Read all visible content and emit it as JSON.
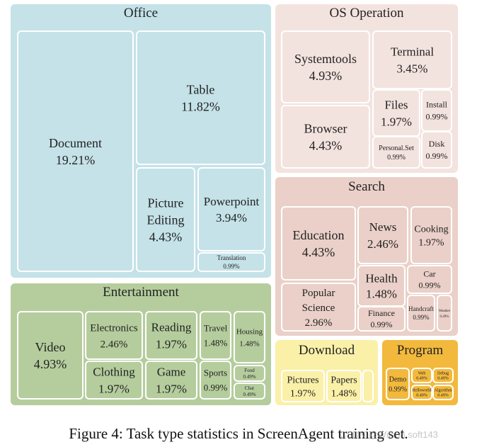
{
  "chart_data": {
    "type": "treemap",
    "groups": [
      {
        "name": "Office",
        "color": "#c4e2e8",
        "leaves": [
          {
            "lines": [
              "Document",
              "19.21%"
            ],
            "value": 19.21
          },
          {
            "lines": [
              "Table",
              "11.82%"
            ],
            "value": 11.82
          },
          {
            "lines": [
              "Picture",
              "Editing",
              "4.43%"
            ],
            "value": 4.43
          },
          {
            "lines": [
              "Powerpoint",
              "3.94%"
            ],
            "value": 3.94
          },
          {
            "lines": [
              "Translation",
              "0.99%"
            ],
            "value": 0.99
          }
        ]
      },
      {
        "name": "OS Operation",
        "color": "#f3e3de",
        "leaves": [
          {
            "lines": [
              "Systemtools",
              "4.93%"
            ],
            "value": 4.93
          },
          {
            "lines": [
              "Terminal",
              "3.45%"
            ],
            "value": 3.45
          },
          {
            "lines": [
              "Browser",
              "4.43%"
            ],
            "value": 4.43
          },
          {
            "lines": [
              "Files",
              "1.97%"
            ],
            "value": 1.97
          },
          {
            "lines": [
              "Install",
              "0.99%"
            ],
            "value": 0.99
          },
          {
            "lines": [
              "Personal.Set",
              "0.99%"
            ],
            "value": 0.99
          },
          {
            "lines": [
              "Disk",
              "0.99%"
            ],
            "value": 0.99
          }
        ]
      },
      {
        "name": "Search",
        "color": "#ead0c8",
        "leaves": [
          {
            "lines": [
              "Education",
              "4.43%"
            ],
            "value": 4.43
          },
          {
            "lines": [
              "News",
              "2.46%"
            ],
            "value": 2.46
          },
          {
            "lines": [
              "Cooking",
              "1.97%"
            ],
            "value": 1.97
          },
          {
            "lines": [
              "Popular",
              "Science",
              "2.96%"
            ],
            "value": 2.96
          },
          {
            "lines": [
              "Health",
              "1.48%"
            ],
            "value": 1.48
          },
          {
            "lines": [
              "Car",
              "0.99%"
            ],
            "value": 0.99
          },
          {
            "lines": [
              "Finance",
              "0.99%"
            ],
            "value": 0.99
          },
          {
            "lines": [
              "Handcraft",
              "0.99%"
            ],
            "value": 0.99
          },
          {
            "lines": [
              "Weather",
              "0.49%"
            ],
            "value": 0.49
          }
        ]
      },
      {
        "name": "Entertainment",
        "color": "#b5cd9d",
        "leaves": [
          {
            "lines": [
              "Video",
              "4.93%"
            ],
            "value": 4.93
          },
          {
            "lines": [
              "Electronics",
              "2.46%"
            ],
            "value": 2.46
          },
          {
            "lines": [
              "Reading",
              "1.97%"
            ],
            "value": 1.97
          },
          {
            "lines": [
              "Travel",
              "1.48%"
            ],
            "value": 1.48
          },
          {
            "lines": [
              "Housing",
              "1.48%"
            ],
            "value": 1.48
          },
          {
            "lines": [
              "Clothing",
              "1.97%"
            ],
            "value": 1.97
          },
          {
            "lines": [
              "Game",
              "1.97%"
            ],
            "value": 1.97
          },
          {
            "lines": [
              "Sports",
              "0.99%"
            ],
            "value": 0.99
          },
          {
            "lines": [
              "Food",
              "0.49%"
            ],
            "value": 0.49
          },
          {
            "lines": [
              "Chat",
              "0.49%"
            ],
            "value": 0.49
          }
        ]
      },
      {
        "name": "Download",
        "color": "#faf0a8",
        "leaves": [
          {
            "lines": [
              "Pictures",
              "1.97%"
            ],
            "value": 1.97
          },
          {
            "lines": [
              "Papers",
              "1.48%"
            ],
            "value": 1.48
          },
          {
            "lines": [],
            "value": null
          }
        ]
      },
      {
        "name": "Program",
        "color": "#f2b93d",
        "leaves": [
          {
            "lines": [
              "Demo",
              "0.99%"
            ],
            "value": 0.99
          },
          {
            "lines": [
              "Web",
              "0.49%"
            ],
            "value": 0.49
          },
          {
            "lines": [
              "Debug",
              "0.49%"
            ],
            "value": 0.49
          },
          {
            "lines": [
              "Helloworld",
              "0.49%"
            ],
            "value": 0.49
          },
          {
            "lines": [
              "Algorithm",
              "0.49%"
            ],
            "value": 0.49
          }
        ]
      }
    ]
  },
  "caption": "Figure 4: Task type statistics in ScreenAgent training set.",
  "watermark": "CSDN @Wilson soft143"
}
